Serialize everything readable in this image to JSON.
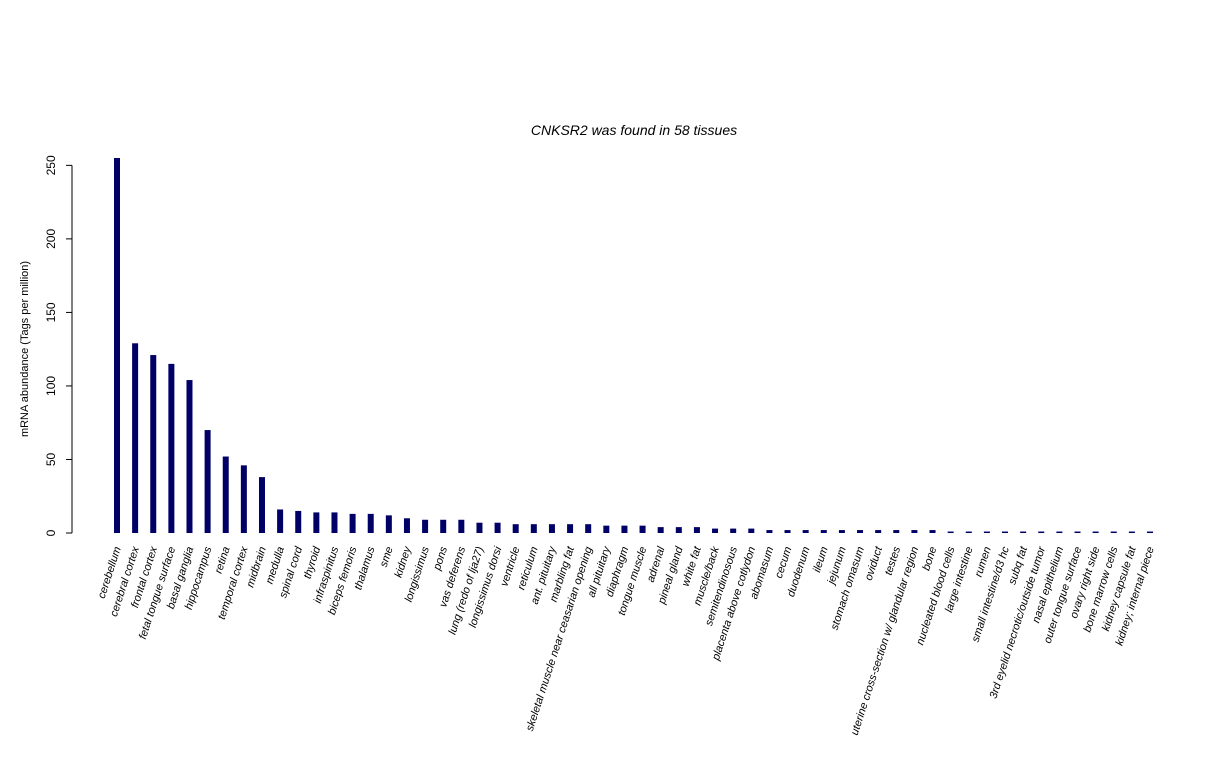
{
  "chart_data": {
    "type": "bar",
    "title": "CNKSR2  was found in  58  tissues",
    "xlabel": "",
    "ylabel": "mRNA abundance (Tags per million)",
    "ylim": [
      0,
      255
    ],
    "yticks": [
      0,
      50,
      100,
      150,
      200,
      250
    ],
    "grid": false,
    "bar_color": "#000066",
    "categories": [
      "cerebellum",
      "cerebral cortex",
      "frontal cortex",
      "fetal tongue surface",
      "basal ganglia",
      "hippocampus",
      "retina",
      "temporal cortex",
      "midbrain",
      "medulla",
      "spinal cord",
      "thyroid",
      "infraspinitus",
      "biceps femoris",
      "thalamus",
      "sme",
      "kidney",
      "longissimus",
      "pons",
      "vas deferens",
      "lung (redo of lja27)",
      "longissimus dorsi",
      "ventricle",
      "reticulum",
      "ant. pituitary",
      "marbling fat",
      "skeletal muscle near ceasarian opening",
      "all pituitary",
      "diaphragm",
      "tongue muscle",
      "adrenal",
      "pineal gland",
      "white fat",
      "muscle/back",
      "semitendinosous",
      "placenta above cotlydon",
      "abomasum",
      "cecum",
      "duodenum",
      "ileum",
      "jejunum",
      "stomach omasum",
      "oviduct",
      "testes",
      "uterine cross-section w/ glandular region",
      "bone",
      "nucleated blood cells",
      "large intestine",
      "rumen",
      "small intestine/d3 hc",
      "subq fat",
      "3rd eyelid necrotic/outside tumor",
      "nasal epithelium",
      "outer tongue surface",
      "ovary right side",
      "bone marrow cells",
      "kidney capsule fat",
      "kidney; internal piece"
    ],
    "values": [
      255,
      129,
      121,
      115,
      104,
      70,
      52,
      46,
      38,
      16,
      15,
      14,
      14,
      13,
      13,
      12,
      10,
      9,
      9,
      9,
      7,
      7,
      6,
      6,
      6,
      6,
      6,
      5,
      5,
      5,
      4,
      4,
      4,
      3,
      3,
      3,
      2,
      2,
      2,
      2,
      2,
      2,
      2,
      2,
      2,
      2,
      1,
      1,
      1,
      1,
      1,
      1,
      1,
      1,
      1,
      1,
      1,
      1
    ]
  }
}
